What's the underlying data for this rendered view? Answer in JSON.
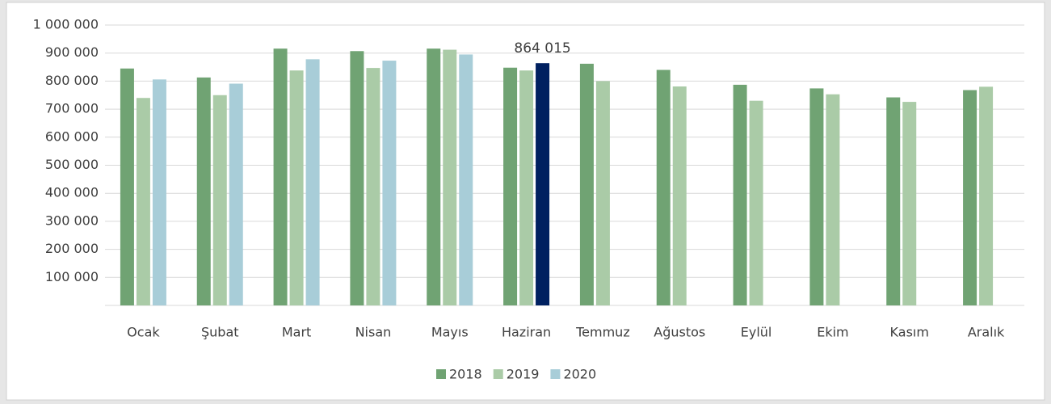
{
  "chart_data": {
    "type": "bar",
    "categories": [
      "Ocak",
      "Şubat",
      "Mart",
      "Nisan",
      "Mayıs",
      "Haziran",
      "Temmuz",
      "Ağustos",
      "Eylül",
      "Ekim",
      "Kasım",
      "Aralık"
    ],
    "series": [
      {
        "name": "2018",
        "color": "#70a373",
        "values": [
          845000,
          813000,
          916000,
          907000,
          916000,
          848000,
          862000,
          840000,
          787000,
          774000,
          742000,
          768000
        ]
      },
      {
        "name": "2019",
        "color": "#aacba7",
        "values": [
          740000,
          750000,
          838000,
          847000,
          912000,
          838000,
          800000,
          781000,
          730000,
          753000,
          726000,
          780000
        ]
      },
      {
        "name": "2020",
        "color": "#a8cdd8",
        "values": [
          806000,
          791000,
          878000,
          873000,
          895000,
          864015,
          null,
          null,
          null,
          null,
          null,
          null
        ],
        "colors": [
          "#a8cdd8",
          "#a8cdd8",
          "#a8cdd8",
          "#a8cdd8",
          "#a8cdd8",
          "#002060",
          "#a8cdd8",
          "#a8cdd8",
          "#a8cdd8",
          "#a8cdd8",
          "#a8cdd8",
          "#a8cdd8"
        ],
        "value_labels": [
          null,
          null,
          null,
          null,
          null,
          "864 015",
          null,
          null,
          null,
          null,
          null,
          null
        ]
      }
    ],
    "ylim": [
      0,
      1000000
    ],
    "yticks": [
      {
        "value": 100000,
        "label": "100 000"
      },
      {
        "value": 200000,
        "label": "200 000"
      },
      {
        "value": 300000,
        "label": "300 000"
      },
      {
        "value": 400000,
        "label": "400 000"
      },
      {
        "value": 500000,
        "label": "500 000"
      },
      {
        "value": 600000,
        "label": "600 000"
      },
      {
        "value": 700000,
        "label": "700 000"
      },
      {
        "value": 800000,
        "label": "800 000"
      },
      {
        "value": 900000,
        "label": "900 000"
      },
      {
        "value": 1000000,
        "label": "1 000 000"
      }
    ],
    "grid": true,
    "legend": "bottom"
  }
}
